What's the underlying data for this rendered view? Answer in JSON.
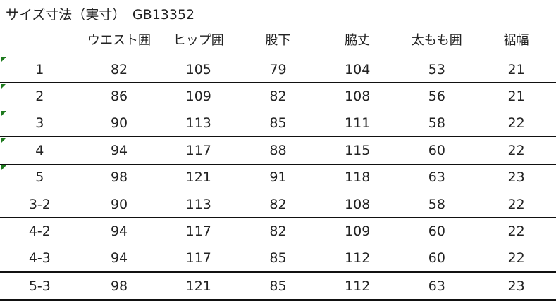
{
  "title": "サイズ寸法（実寸）　GB13352",
  "headers": [
    "",
    "ウエスト囲",
    "ヒップ囲",
    "股下",
    "脇丈",
    "太もも囲",
    "裾幅"
  ],
  "rows": [
    {
      "cells": [
        "1",
        "82",
        "105",
        "79",
        "104",
        "53",
        "21"
      ],
      "flag": true
    },
    {
      "cells": [
        "2",
        "86",
        "109",
        "82",
        "108",
        "56",
        "21"
      ],
      "flag": true
    },
    {
      "cells": [
        "3",
        "90",
        "113",
        "85",
        "111",
        "58",
        "22"
      ],
      "flag": true
    },
    {
      "cells": [
        "4",
        "94",
        "117",
        "88",
        "115",
        "60",
        "22"
      ],
      "flag": true
    },
    {
      "cells": [
        "5",
        "98",
        "121",
        "91",
        "118",
        "63",
        "23"
      ],
      "flag": true
    },
    {
      "cells": [
        "3-2",
        "90",
        "113",
        "82",
        "108",
        "58",
        "22"
      ],
      "flag": false
    },
    {
      "cells": [
        "4-2",
        "94",
        "117",
        "82",
        "109",
        "60",
        "22"
      ],
      "flag": false
    },
    {
      "cells": [
        "4-3",
        "94",
        "117",
        "85",
        "112",
        "60",
        "22"
      ],
      "flag": false
    },
    {
      "cells": [
        "5-3",
        "98",
        "121",
        "85",
        "112",
        "63",
        "23"
      ],
      "flag": false
    }
  ],
  "colors": {
    "flag": "#1e7a1e",
    "border": "#111111"
  }
}
